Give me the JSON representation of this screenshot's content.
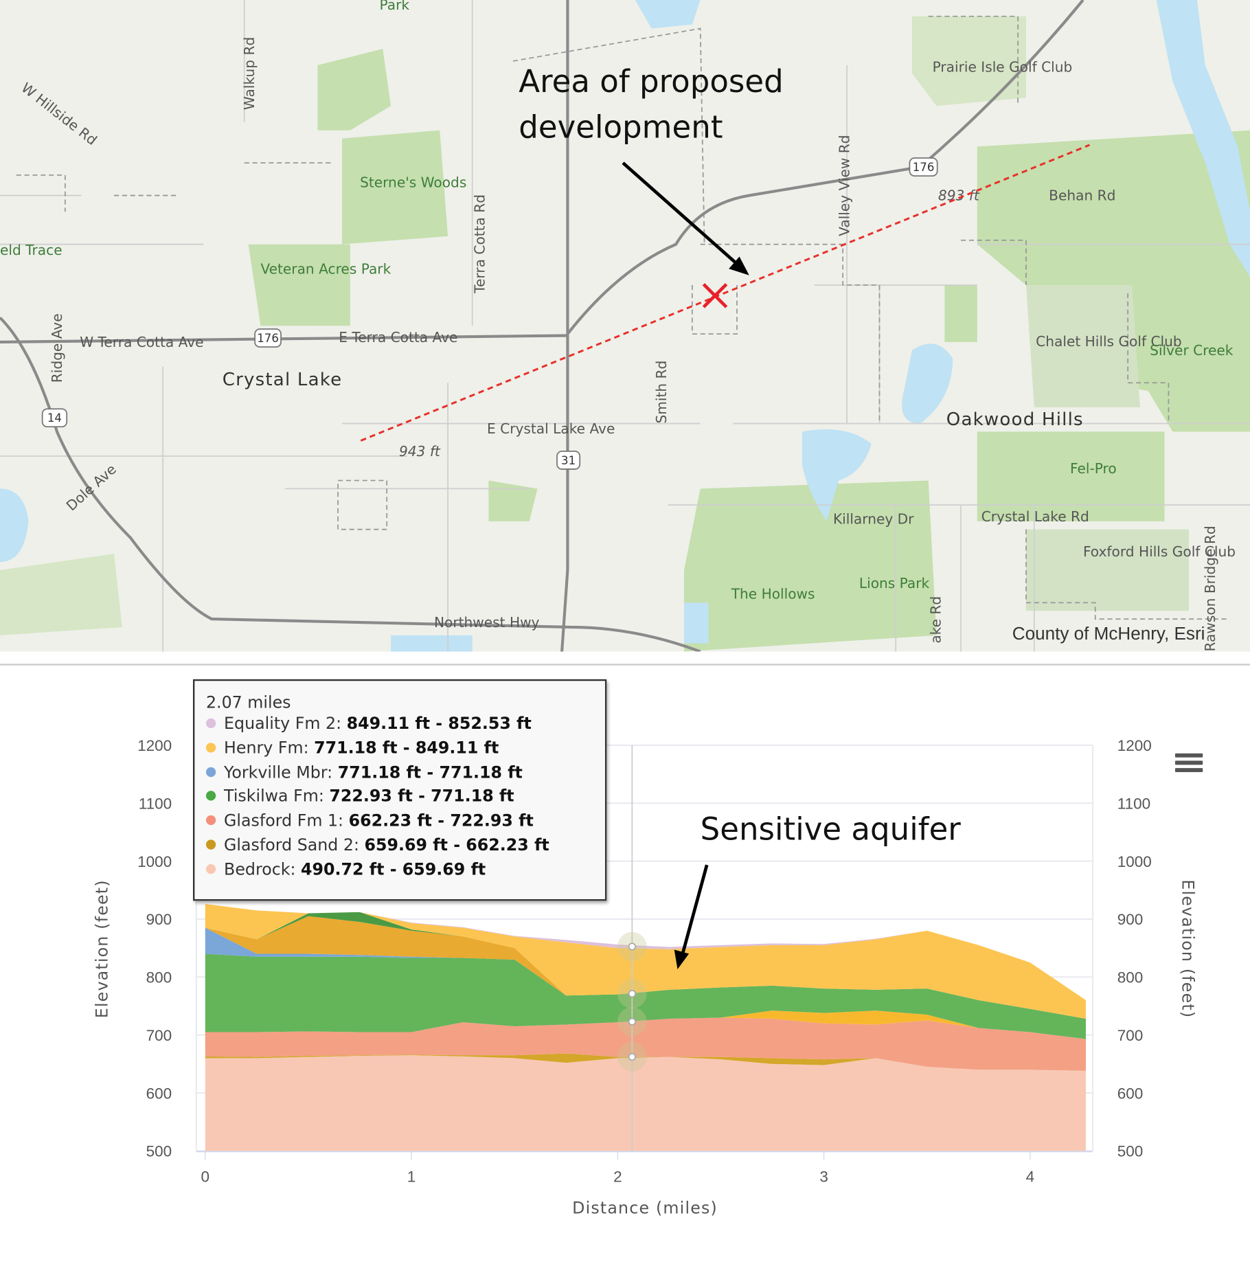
{
  "map": {
    "labels": [
      "Park",
      "Walkup Rd",
      "W Hillside Rd",
      "Sterne's Woods",
      "Terra Cotta Rd",
      "Prairie Isle Golf Club",
      "Valley View Rd",
      "Behan Rd",
      "893 ft",
      "Veteran Acres Park",
      "eld Trace",
      "Ridge Ave",
      "W Terra Cotta Ave",
      "E Terra Cotta Ave",
      "Crystal Lake",
      "Smith Rd",
      "Chalet Hills Golf Club",
      "Silver Creek",
      "Oakwood Hills",
      "E Crystal Lake Ave",
      "943 ft",
      "Dole Ave",
      "Fel-Pro",
      "Killarney Dr",
      "Crystal Lake Rd",
      "Foxford Hills Golf Club",
      "Lions Park",
      "The Hollows",
      "Northwest Hwy",
      "ake Rd",
      "Rawson Bridge Rd"
    ],
    "shields": [
      "176",
      "176",
      "176",
      "14",
      "31"
    ],
    "attribution": "County of McHenry, Esri",
    "annotation": "Area of proposed development",
    "colors": {
      "profile_line": "#e8302a",
      "marker": "#e8202a",
      "park": "#c5dfae",
      "water": "#bfe2f4"
    }
  },
  "chart_data": {
    "type": "area",
    "stacked": true,
    "xlabel": "Distance (miles)",
    "ylabel": "Elevation (feet)",
    "ylabel_right": "Elevation (feet)",
    "xlim": [
      0,
      4.27
    ],
    "ylim": [
      500,
      1200
    ],
    "xticks": [
      "0",
      "1",
      "2",
      "3",
      "4"
    ],
    "yticks": [
      "500",
      "600",
      "700",
      "800",
      "900",
      "1000",
      "1100",
      "1200"
    ],
    "grid": true,
    "x": [
      0,
      0.25,
      0.5,
      0.75,
      1,
      1.25,
      1.5,
      1.75,
      2,
      2.25,
      2.5,
      2.75,
      3,
      3.25,
      3.5,
      3.75,
      4,
      4.27
    ],
    "series": [
      {
        "name": "Bedrock",
        "color": "#f8c8b4",
        "top": [
          660,
          660,
          662,
          664,
          665,
          663,
          660,
          652,
          660,
          662,
          658,
          650,
          648,
          660,
          645,
          640,
          640,
          638
        ]
      },
      {
        "name": "Glasford Sand 2",
        "color": "#d4a62a",
        "top": [
          663,
          662,
          664,
          665,
          666,
          665,
          665,
          668,
          662,
          662,
          662,
          660,
          658,
          660,
          645,
          640,
          640,
          638
        ]
      },
      {
        "name": "Glasford Fm 1",
        "color": "#f4a084",
        "top": [
          705,
          705,
          706,
          705,
          705,
          722,
          715,
          718,
          722,
          728,
          730,
          728,
          720,
          718,
          725,
          712,
          705,
          693
        ]
      },
      {
        "color": "#f8b82e",
        "top": [
          705,
          705,
          706,
          705,
          705,
          722,
          715,
          718,
          722,
          728,
          730,
          742,
          738,
          742,
          735,
          712,
          705,
          693
        ]
      },
      {
        "name": "Tiskilwa Fm",
        "color": "#64b45a",
        "top": [
          840,
          835,
          835,
          835,
          833,
          833,
          830,
          768,
          770,
          778,
          782,
          785,
          780,
          778,
          780,
          760,
          745,
          728
        ]
      },
      {
        "name": "Yorkville Mbr",
        "color": "#7aa6d8",
        "top": [
          885,
          840,
          840,
          838,
          835,
          833,
          830,
          768,
          770,
          778,
          782,
          785,
          780,
          778,
          780,
          760,
          745,
          728
        ]
      },
      {
        "color": "#e8aa30",
        "top": [
          885,
          865,
          905,
          895,
          880,
          870,
          850,
          768,
          770,
          778,
          782,
          785,
          780,
          778,
          780,
          760,
          745,
          728
        ]
      },
      {
        "color": "#4a9a45",
        "top": [
          885,
          865,
          910,
          912,
          882,
          870,
          850,
          768,
          770,
          778,
          782,
          785,
          780,
          778,
          780,
          760,
          745,
          728
        ]
      },
      {
        "name": "Henry Fm",
        "color": "#fcc552",
        "top": [
          926,
          915,
          900,
          905,
          893,
          885,
          870,
          860,
          850,
          848,
          852,
          855,
          855,
          865,
          880,
          855,
          825,
          760
        ]
      },
      {
        "name": "Equality Fm 2",
        "color": "#dcc0dc",
        "top": [
          926,
          915,
          902,
          906,
          894,
          886,
          871,
          864,
          856,
          852,
          855,
          858,
          857,
          866,
          880,
          855,
          825,
          760
        ]
      }
    ],
    "tooltip": {
      "x_label": "2.07 miles",
      "x": 2.07,
      "rows": [
        {
          "name": "Equality Fm 2",
          "range": "849.11 ft - 852.53 ft",
          "color": "#dcc0dc"
        },
        {
          "name": "Henry Fm",
          "range": "771.18 ft - 849.11 ft",
          "color": "#fcc552"
        },
        {
          "name": "Yorkville Mbr",
          "range": "771.18 ft - 771.18 ft",
          "color": "#7aa6d8"
        },
        {
          "name": "Tiskilwa Fm",
          "range": "722.93 ft - 771.18 ft",
          "color": "#4aa845"
        },
        {
          "name": "Glasford Fm 1",
          "range": "662.23 ft - 722.93 ft",
          "color": "#f4907a"
        },
        {
          "name": "Glasford Sand 2",
          "range": "659.69 ft - 662.23 ft",
          "color": "#c99a1e"
        },
        {
          "name": "Bedrock",
          "range": "490.72 ft - 659.69 ft",
          "color": "#f8c8b4"
        }
      ],
      "markers": [
        852.53,
        771.18,
        722.93,
        662.23
      ]
    },
    "annotation": "Sensitive aquifer"
  }
}
